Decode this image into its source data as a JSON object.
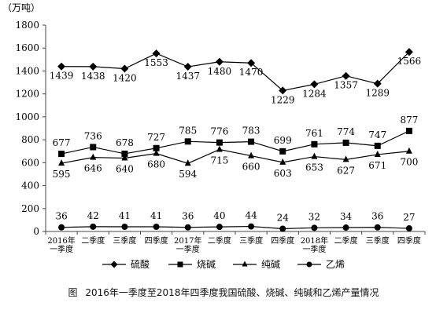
{
  "chart_data": {
    "type": "line",
    "unit_label": "（万吨）",
    "ylim": [
      0,
      1800
    ],
    "yticks": [
      0,
      200,
      400,
      600,
      800,
      1000,
      1200,
      1400,
      1600,
      1800
    ],
    "categories": [
      [
        "2016年",
        "一季度"
      ],
      [
        "二季度"
      ],
      [
        "三季度"
      ],
      [
        "四季度"
      ],
      [
        "2017年",
        "一季度"
      ],
      [
        "二季度"
      ],
      [
        "三季度"
      ],
      [
        "四季度"
      ],
      [
        "2018年",
        "一季度"
      ],
      [
        "二季度"
      ],
      [
        "三季度"
      ],
      [
        "四季度"
      ]
    ],
    "series": [
      {
        "name": "硫酸",
        "marker": "diamond",
        "values": [
          1439,
          1438,
          1420,
          1553,
          1437,
          1480,
          1470,
          1229,
          1284,
          1357,
          1289,
          1566
        ]
      },
      {
        "name": "烧碱",
        "marker": "square",
        "values": [
          677,
          736,
          678,
          727,
          785,
          776,
          783,
          699,
          761,
          774,
          747,
          877
        ]
      },
      {
        "name": "纯碱",
        "marker": "triangle",
        "values": [
          595,
          646,
          640,
          680,
          594,
          715,
          660,
          603,
          653,
          627,
          671,
          700
        ]
      },
      {
        "name": "乙烯",
        "marker": "circle",
        "values": [
          36,
          42,
          41,
          41,
          36,
          40,
          44,
          24,
          32,
          34,
          36,
          27
        ]
      }
    ],
    "legend_position": "bottom",
    "grid": false,
    "line_color": "#000000"
  },
  "caption": {
    "prefix": "图",
    "text": "2016年一季度至2018年四季度我国硫酸、烧碱、纯碱和乙烯产量情况"
  }
}
